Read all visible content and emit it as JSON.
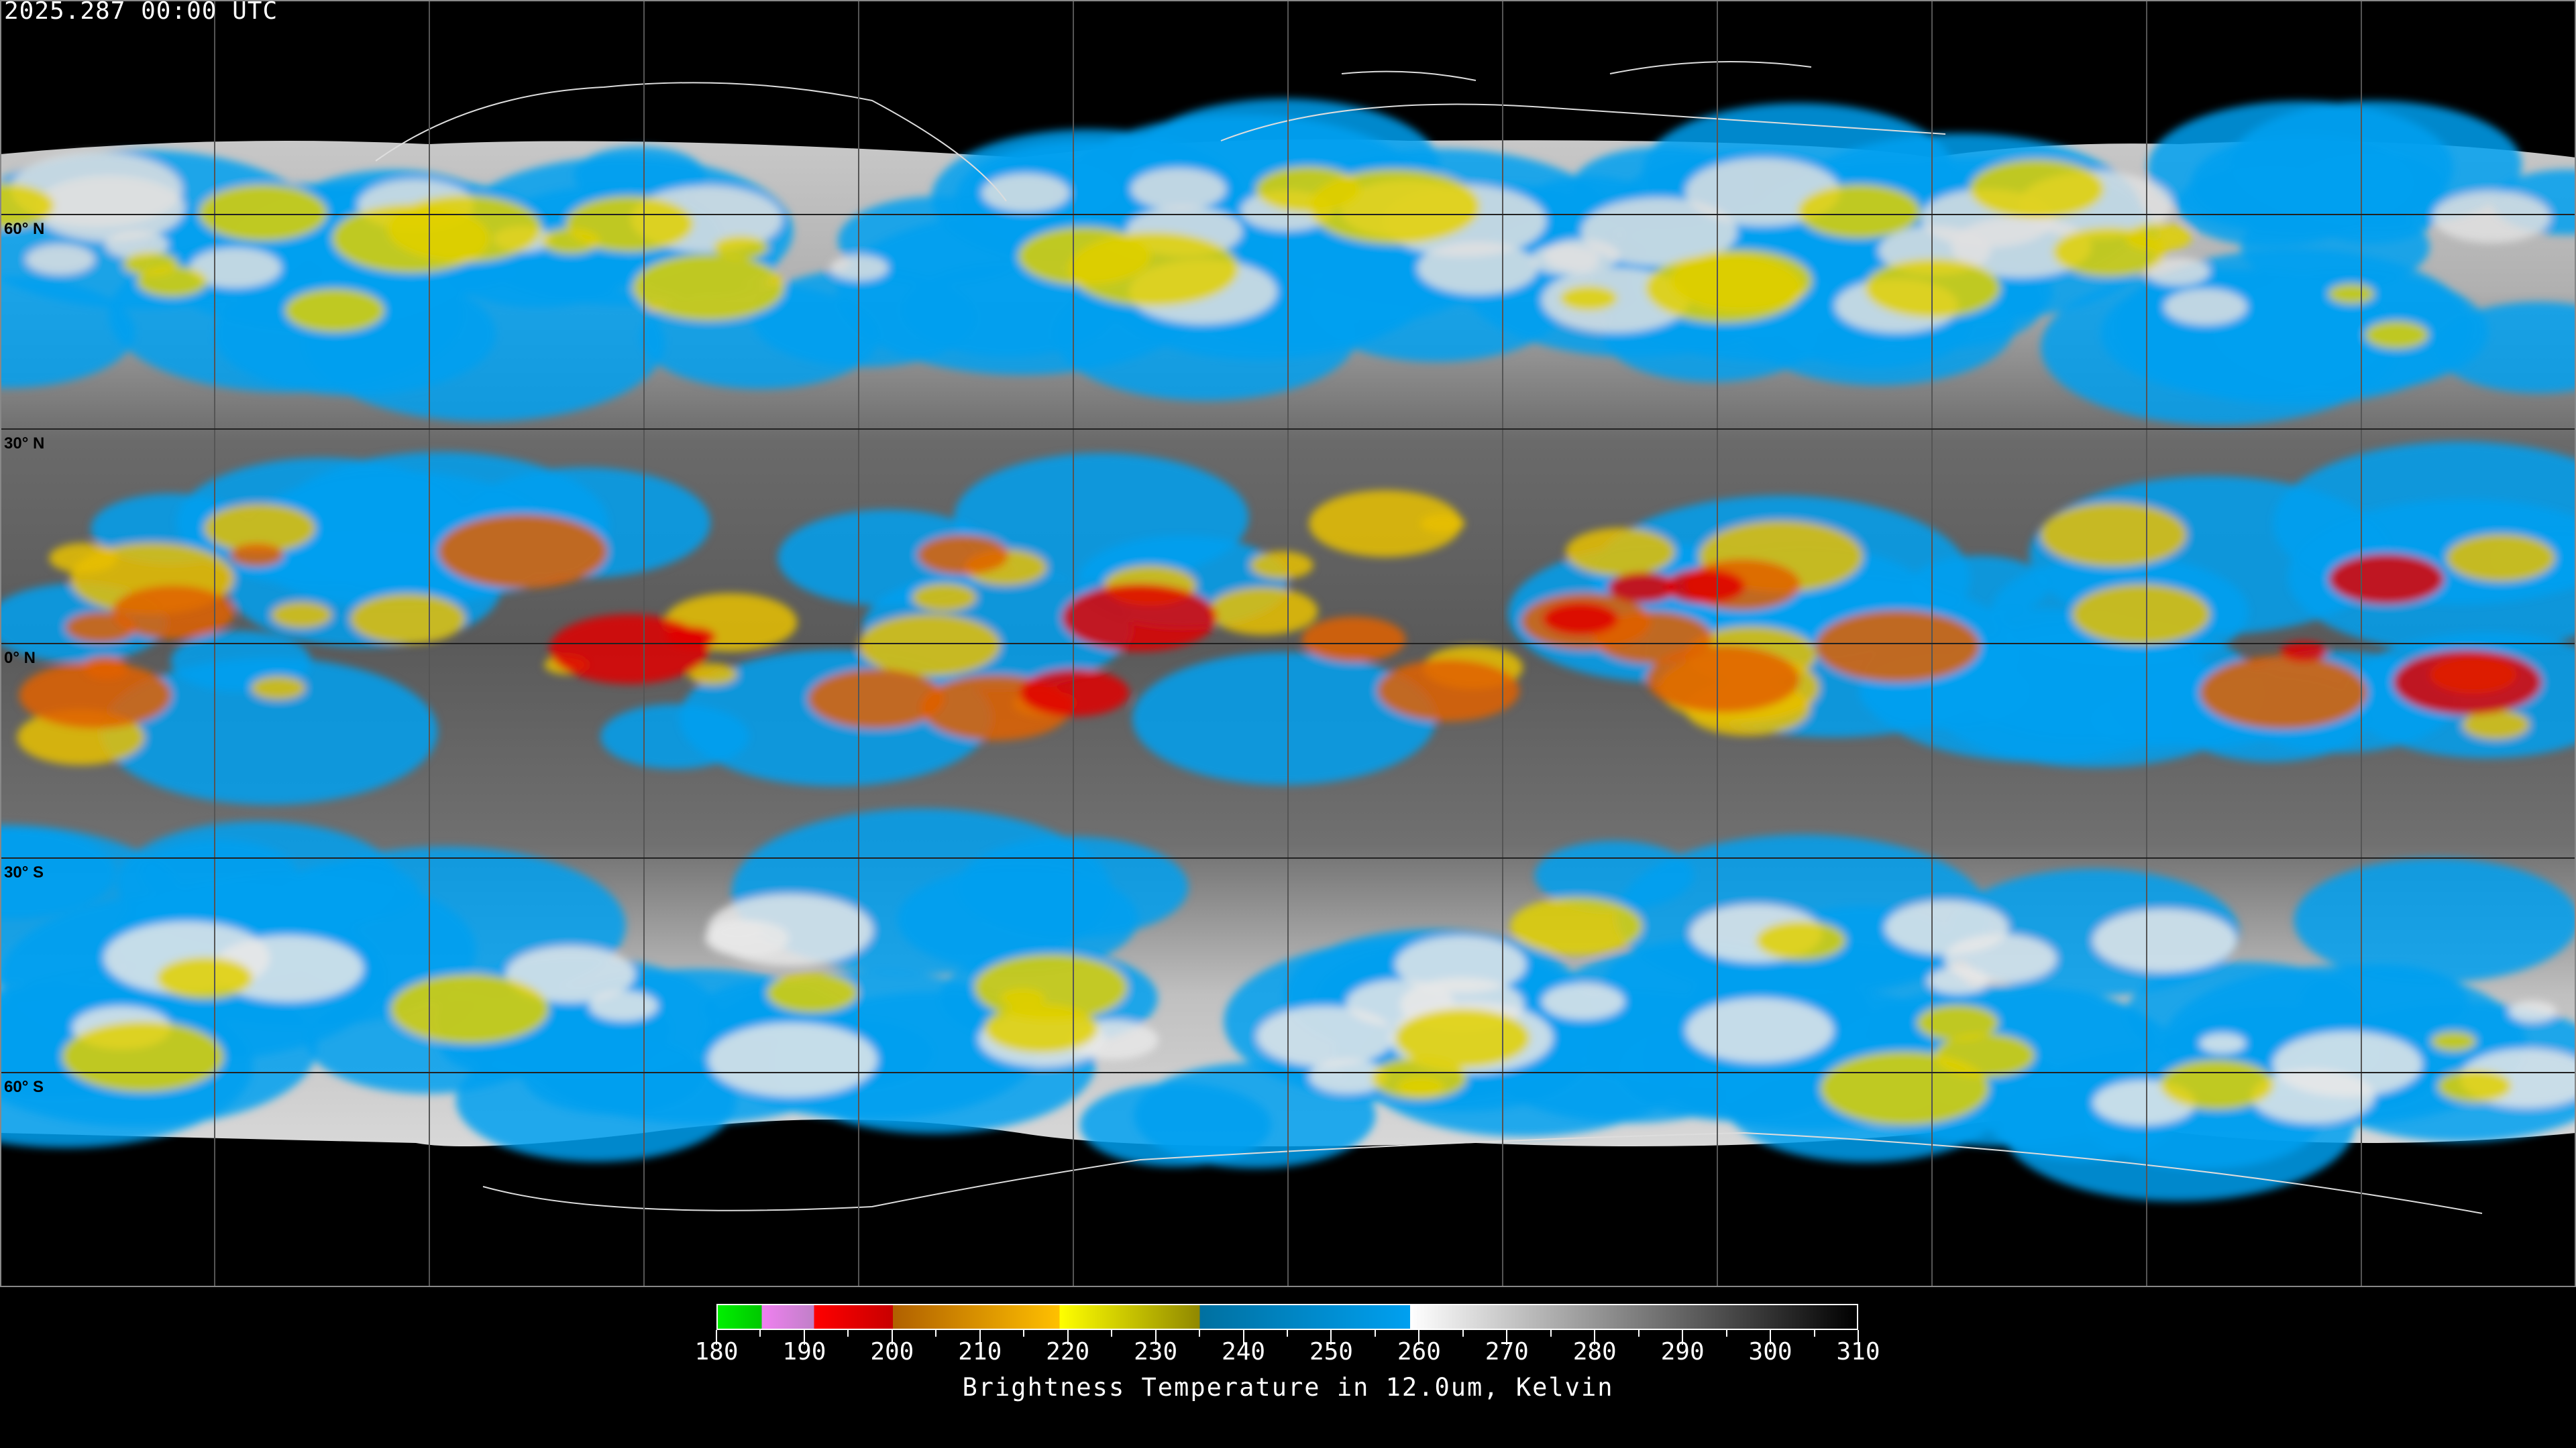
{
  "header": {
    "timestamp": "2025.287 00:00 UTC"
  },
  "map": {
    "projection": "equirectangular",
    "grid_spacing_deg": 30,
    "latitude_labels": [
      "60° N",
      "30° N",
      "0° N",
      "30° S",
      "60° S"
    ],
    "latitude_values": [
      60,
      30,
      0,
      -30,
      -60
    ]
  },
  "colorbar": {
    "title": "Brightness Temperature in 12.0um, Kelvin",
    "min": 180,
    "max": 310,
    "tick_labels": [
      "180",
      "190",
      "200",
      "210",
      "220",
      "230",
      "240",
      "250",
      "260",
      "270",
      "280",
      "290",
      "300",
      "310"
    ],
    "segments": [
      {
        "from": 180,
        "to": 185,
        "colors": [
          "#00f000",
          "#00c800"
        ]
      },
      {
        "from": 185,
        "to": 191,
        "colors": [
          "#f080f0",
          "#c080c8"
        ]
      },
      {
        "from": 191,
        "to": 200,
        "colors": [
          "#ff0000",
          "#c80000"
        ]
      },
      {
        "from": 200,
        "to": 219,
        "colors": [
          "#b06000",
          "#ffc000"
        ]
      },
      {
        "from": 219,
        "to": 235,
        "colors": [
          "#ffff00",
          "#908800"
        ]
      },
      {
        "from": 235,
        "to": 259,
        "colors": [
          "#0070a0",
          "#00a0f0"
        ]
      },
      {
        "from": 259,
        "to": 310,
        "colors": [
          "#ffffff",
          "#000000"
        ]
      }
    ]
  }
}
